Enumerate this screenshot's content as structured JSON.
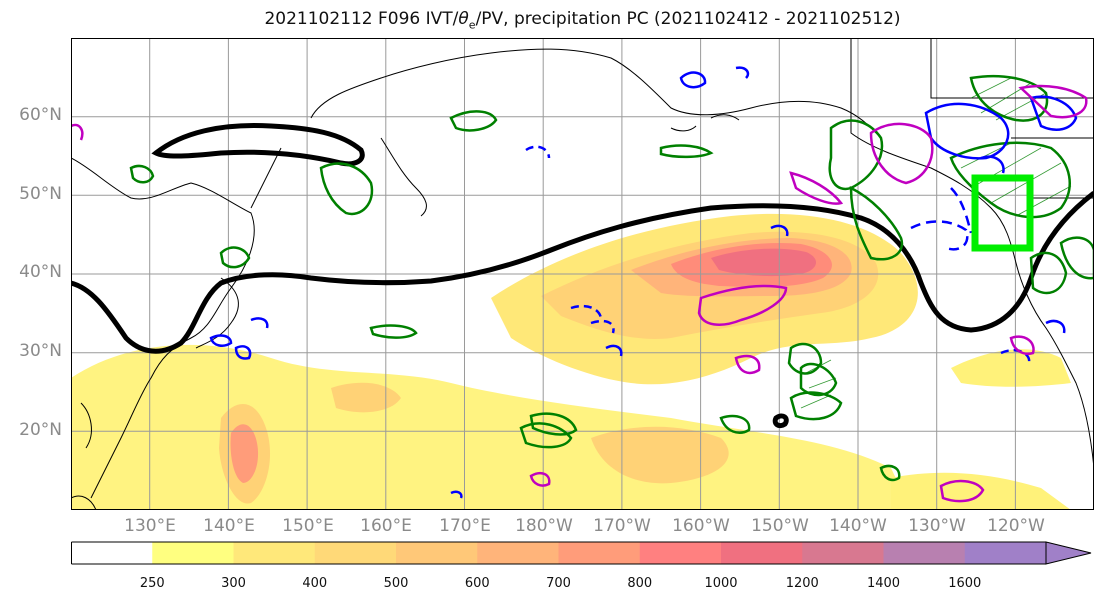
{
  "title": "2021102112 F096 IVT/θe/PV, precipitation PC (2021102412 - 2021102512)",
  "title_parts": {
    "pre": "2021102112 F096 IVT/",
    "theta": "θ",
    "sub": "e",
    "post": "/PV, precipitation PC (2021102412 - 2021102512)"
  },
  "map": {
    "extent": {
      "lon_min": 120,
      "lon_max": 250,
      "lat_min": 10,
      "lat_max": 70
    },
    "lat_labels": [
      "20°N",
      "30°N",
      "40°N",
      "50°N",
      "60°N"
    ],
    "lon_labels": [
      "130°E",
      "140°E",
      "150°E",
      "160°E",
      "170°E",
      "180°W",
      "170°W",
      "160°W",
      "150°W",
      "140°W",
      "130°W",
      "120°W"
    ],
    "grid": true,
    "box_color": "#00ee00",
    "colors": {
      "contour_precip": "#008000",
      "contour_pv": "#0000ff",
      "contour_theta": "#c000c0",
      "jet": "#000000"
    }
  },
  "colorbar": {
    "levels": [
      "250",
      "300",
      "400",
      "500",
      "600",
      "700",
      "800",
      "1000",
      "1200",
      "1400",
      "1600"
    ],
    "colors": [
      "#ffffff",
      "#ffff80",
      "#ffe87a",
      "#ffd978",
      "#ffc878",
      "#ffb47a",
      "#ff9c7a",
      "#ff8080",
      "#f07080",
      "#d87890",
      "#b880b0",
      "#a080c8"
    ],
    "extend": "max"
  }
}
